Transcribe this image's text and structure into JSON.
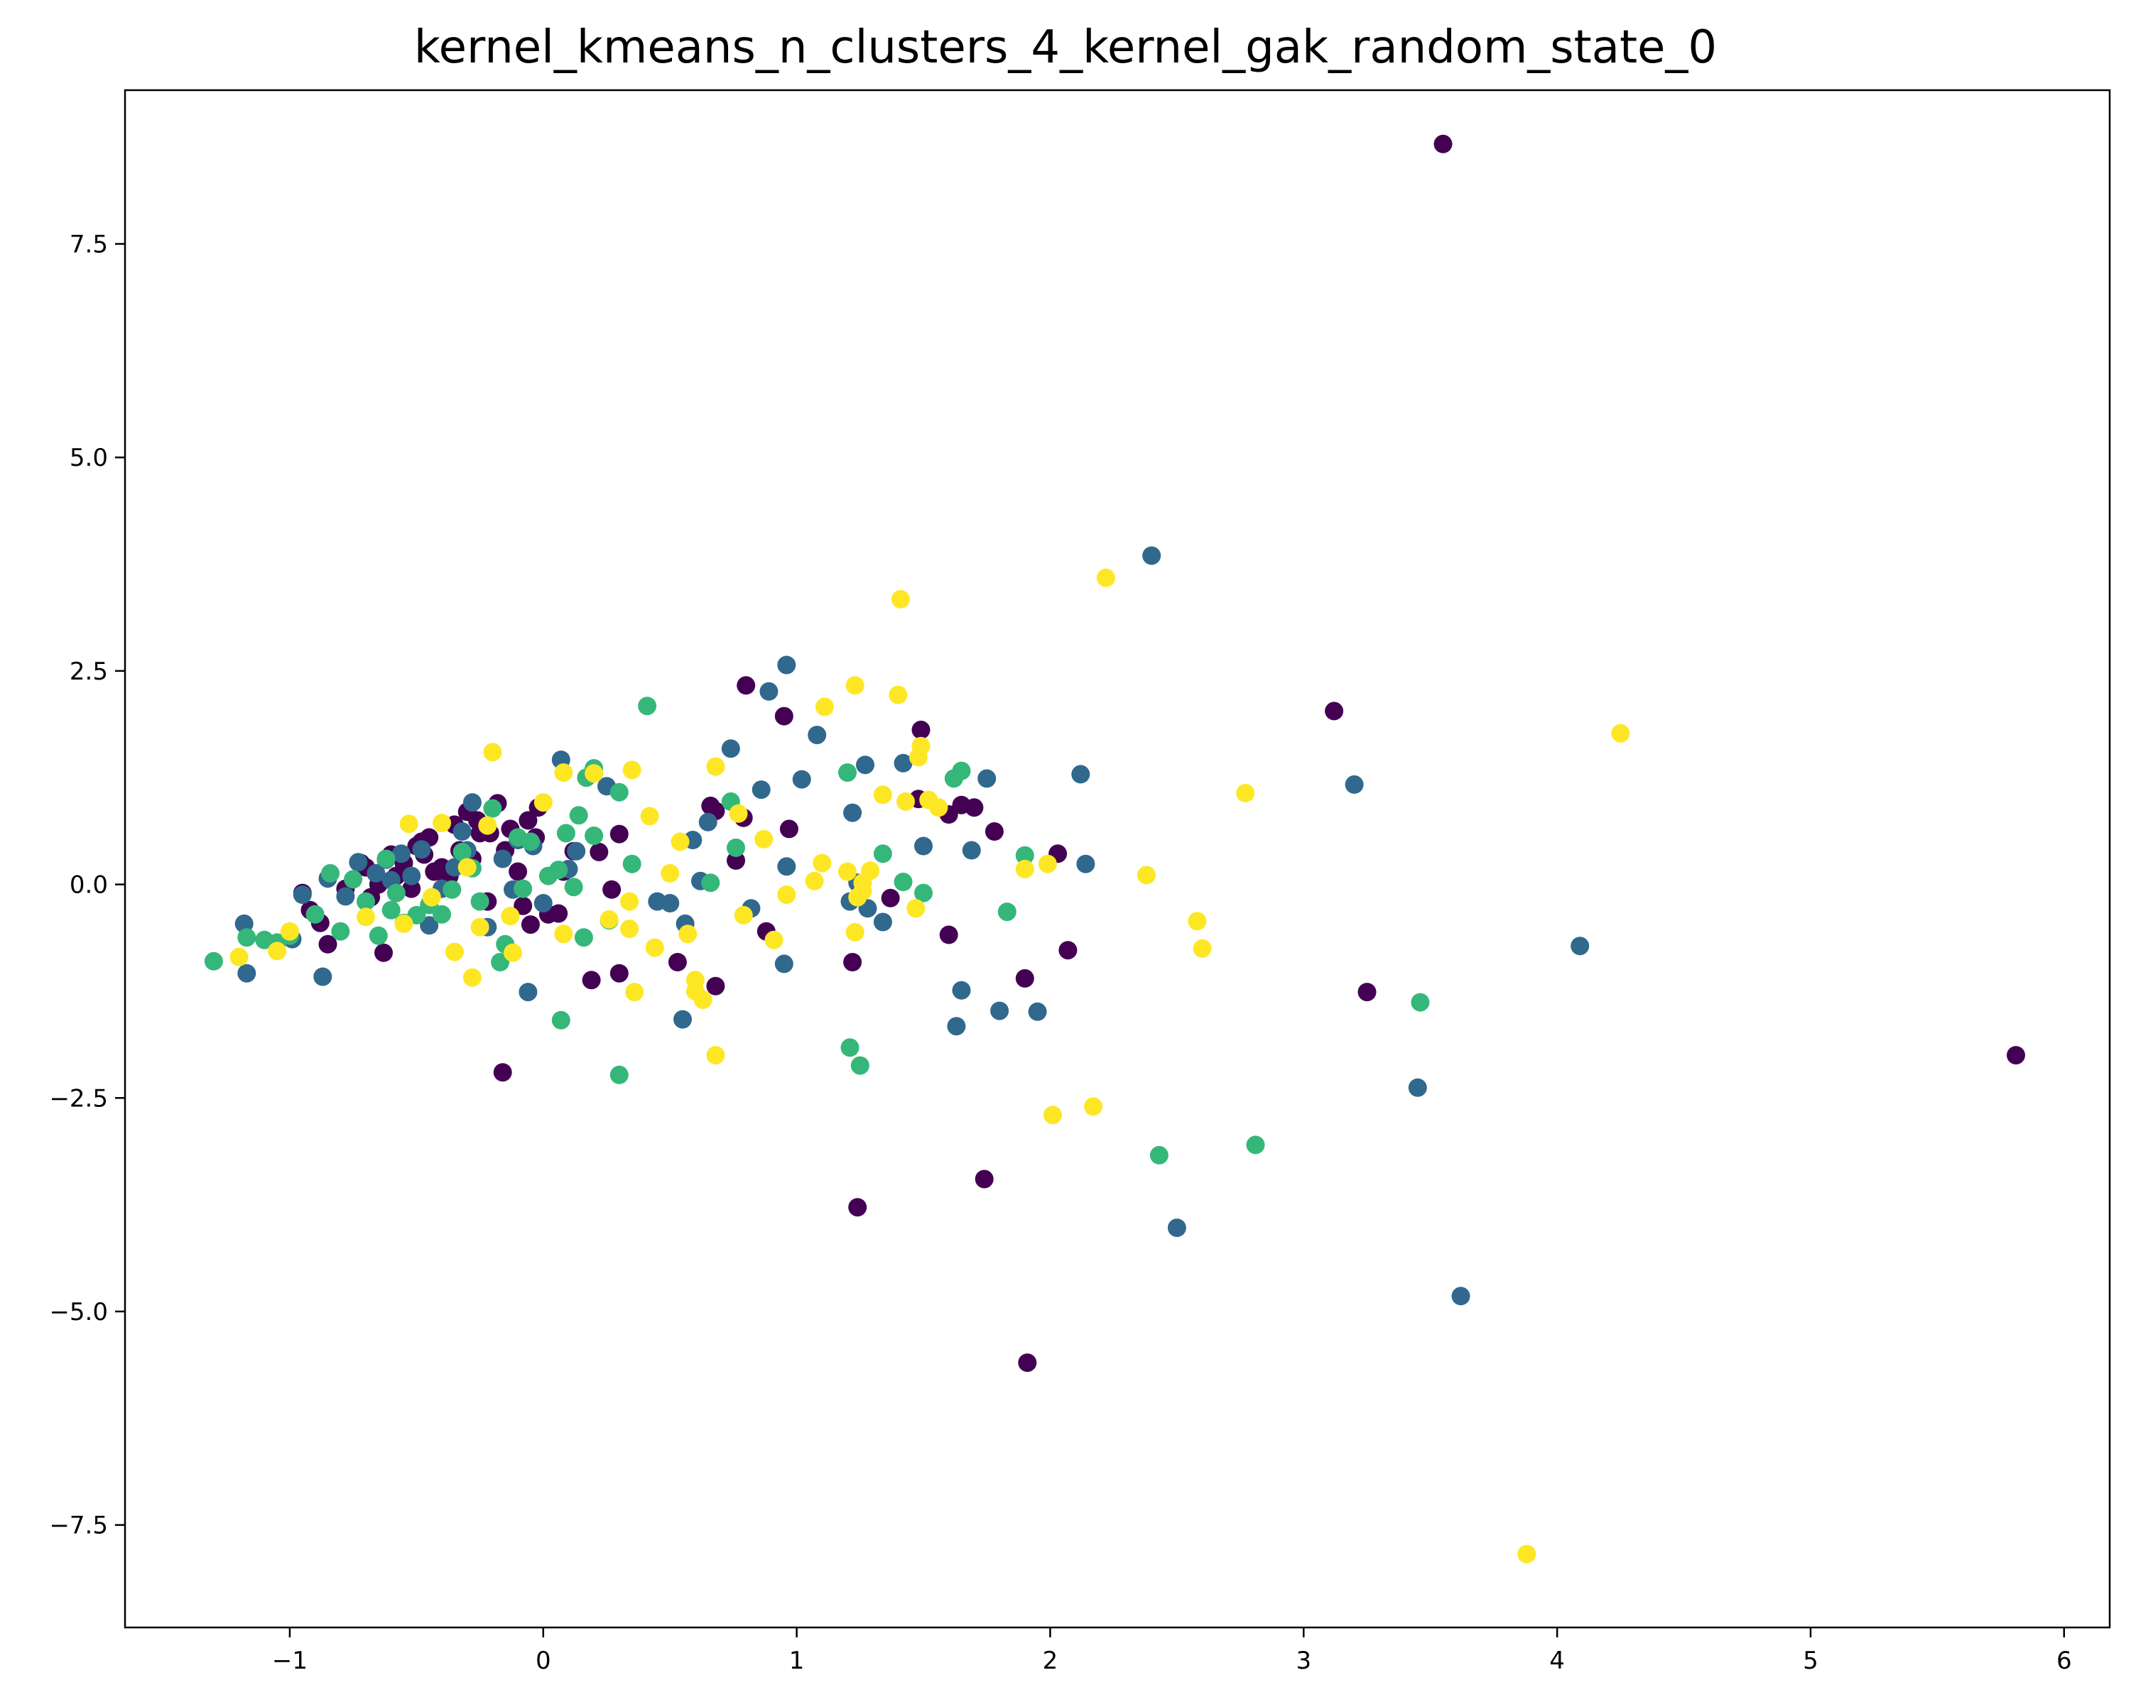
{
  "chart_data": {
    "type": "scatter",
    "title": "kernel_kmeans_n_clusters_4_kernel_gak_random_state_0",
    "xlabel": "",
    "ylabel": "",
    "xlim": [
      -1.65,
      6.18
    ],
    "ylim": [
      -8.7,
      9.3
    ],
    "xticks": [
      -1,
      0,
      1,
      2,
      3,
      4,
      5,
      6
    ],
    "xtick_labels": [
      "−1",
      "0",
      "1",
      "2",
      "3",
      "4",
      "5",
      "6"
    ],
    "yticks": [
      -7.5,
      -5.0,
      -2.5,
      0.0,
      2.5,
      5.0,
      7.5
    ],
    "ytick_labels": [
      "−7.5",
      "−5.0",
      "−2.5",
      "0.0",
      "2.5",
      "5.0",
      "7.5"
    ],
    "grid": false,
    "legend": "none",
    "colormap": "viridis",
    "series": [
      {
        "color": "#440154",
        "x": [
          3.55,
          5.81,
          3.12,
          0.8,
          0.95,
          1.49,
          1.48,
          1.65,
          1.7,
          1.6,
          1.78,
          2.03,
          0.66,
          0.68,
          0.97,
          0.76,
          0.79,
          1.37,
          1.6,
          2.07,
          1.22,
          1.9,
          3.25,
          0.88,
          0.53,
          0.68,
          0.3,
          0.19,
          0.22,
          0.27,
          0.3,
          0.12,
          0.06,
          -0.05,
          -0.16,
          1.24,
          1.74,
          1.91,
          -0.85,
          -0.88,
          -0.95,
          -0.63,
          -0.58,
          -0.55,
          -0.5,
          -0.45,
          -0.4,
          -0.35,
          -0.3,
          -0.28,
          -0.25,
          -0.22,
          -0.18,
          -0.15,
          -0.1,
          -0.06,
          -0.03,
          -0.72,
          -0.68,
          -0.65,
          -0.6,
          -0.52,
          -0.48,
          -0.43,
          -0.38,
          -0.33,
          -0.26,
          -0.21,
          -0.13,
          -0.08,
          -0.02,
          0.02,
          0.08,
          -0.92,
          -0.78,
          -0.7,
          -0.47,
          -0.37
        ],
        "y": [
          8.67,
          -2.0,
          2.03,
          2.33,
          1.97,
          1.81,
          1.0,
          0.93,
          0.9,
          0.82,
          0.62,
          0.36,
          0.92,
          0.86,
          0.65,
          0.28,
          0.78,
          -0.16,
          -0.59,
          -0.77,
          -0.91,
          -1.1,
          -1.26,
          -0.55,
          -0.91,
          -1.19,
          -1.04,
          -1.12,
          0.38,
          -0.06,
          0.59,
          0.39,
          -0.34,
          -0.47,
          -2.2,
          -3.78,
          -3.45,
          -5.6,
          -0.7,
          -0.45,
          -0.1,
          -0.8,
          0.1,
          0.25,
          0.45,
          0.55,
          0.2,
          0.7,
          0.85,
          0.3,
          0.6,
          -0.2,
          0.95,
          0.4,
          0.15,
          0.75,
          0.55,
          0.25,
          -0.15,
          0.0,
          0.35,
          -0.05,
          0.5,
          0.15,
          0.05,
          0.4,
          0.75,
          0.6,
          0.65,
          -0.25,
          0.9,
          -0.35,
          0.15,
          -0.3,
          -0.05,
          0.2,
          0.35,
          0.1
        ]
      },
      {
        "color": "#31688e",
        "x": [
          2.4,
          3.2,
          0.96,
          0.89,
          1.08,
          2.12,
          2.14,
          1.75,
          1.27,
          1.22,
          1.42,
          1.5,
          1.69,
          1.02,
          0.86,
          0.74,
          0.65,
          0.59,
          0.62,
          0.96,
          1.24,
          1.34,
          1.21,
          1.28,
          0.82,
          0.45,
          0.5,
          0.56,
          0.95,
          1.65,
          1.63,
          1.8,
          1.95,
          0.55,
          -0.06,
          4.09,
          3.45,
          3.62,
          2.5,
          -0.87,
          -1.17,
          -1.18,
          0.07,
          0.25,
          0.13,
          0.1,
          -0.1,
          -0.12,
          -0.28,
          -0.32,
          -0.48,
          -0.56,
          -0.62,
          -0.66,
          -0.73,
          -0.78,
          -0.85,
          -0.95,
          -0.99,
          -0.45,
          -0.4,
          -0.35,
          -0.22,
          -0.16,
          -0.04,
          0.0,
          -0.6,
          -0.52,
          -0.3
        ],
        "y": [
          3.85,
          1.17,
          2.57,
          2.26,
          1.75,
          1.29,
          0.24,
          1.24,
          1.4,
          0.84,
          1.42,
          0.45,
          0.4,
          1.23,
          1.11,
          1.59,
          0.73,
          0.52,
          0.04,
          0.21,
          0.02,
          -0.44,
          -0.2,
          -0.28,
          -0.28,
          -0.2,
          -0.22,
          -0.46,
          -0.93,
          -1.24,
          -1.66,
          -1.48,
          -1.49,
          -1.58,
          -1.26,
          -0.72,
          -2.38,
          -4.82,
          -4.02,
          -1.08,
          -1.04,
          -0.46,
          1.46,
          1.15,
          0.39,
          0.18,
          0.52,
          -0.06,
          0.96,
          0.62,
          0.41,
          0.36,
          0.29,
          0.13,
          0.26,
          -0.14,
          0.07,
          -0.12,
          -0.64,
          -0.48,
          -0.05,
          0.2,
          -0.5,
          0.3,
          0.45,
          -0.22,
          0.05,
          0.1,
          0.4
        ]
      },
      {
        "color": "#35b779",
        "x": [
          0.41,
          1.2,
          1.65,
          1.62,
          1.9,
          1.34,
          1.42,
          1.5,
          1.83,
          0.74,
          0.76,
          0.66,
          0.2,
          0.17,
          0.3,
          0.14,
          0.2,
          0.09,
          0.06,
          0.35,
          1.21,
          1.25,
          3.46,
          2.43,
          2.81,
          0.3,
          0.07,
          -0.17,
          -0.2,
          -0.32,
          -0.28,
          -0.36,
          -0.45,
          -0.5,
          -0.55,
          -0.6,
          -0.62,
          -0.65,
          -0.7,
          -0.75,
          -0.8,
          -0.84,
          -0.9,
          -1.0,
          -1.05,
          -1.1,
          -1.17,
          -1.3,
          -0.4,
          -0.25,
          -0.15,
          -0.05,
          0.02,
          0.12,
          0.16,
          0.26,
          -0.1,
          -0.08,
          -0.58
        ],
        "y": [
          2.09,
          1.31,
          1.33,
          1.24,
          0.34,
          0.36,
          0.03,
          -0.1,
          -0.32,
          0.97,
          0.43,
          0.02,
          1.36,
          1.25,
          1.08,
          0.81,
          0.57,
          0.6,
          0.17,
          0.24,
          -1.91,
          -2.12,
          -1.38,
          -3.17,
          -3.05,
          -2.23,
          -1.59,
          -0.91,
          0.89,
          0.38,
          0.19,
          -0.06,
          -0.24,
          -0.36,
          -0.45,
          -0.3,
          0.3,
          -0.6,
          -0.2,
          0.06,
          -0.55,
          0.13,
          -0.35,
          -0.6,
          -0.68,
          -0.65,
          -0.62,
          -0.9,
          -0.35,
          -0.2,
          -0.7,
          0.5,
          0.1,
          -0.03,
          -0.62,
          -0.42,
          0.55,
          -0.05,
          -0.1
        ]
      },
      {
        "color": "#fde725",
        "x": [
          3.88,
          4.25,
          2.22,
          1.41,
          1.4,
          1.23,
          1.11,
          1.49,
          1.48,
          1.52,
          1.56,
          1.34,
          2.77,
          2.38,
          2.58,
          2.6,
          2.01,
          2.17,
          1.9,
          1.99,
          1.43,
          1.47,
          1.29,
          1.26,
          1.23,
          1.07,
          1.1,
          1.2,
          0.96,
          0.91,
          0.87,
          0.79,
          0.77,
          0.68,
          0.68,
          0.57,
          0.6,
          0.6,
          0.42,
          0.44,
          0.35,
          0.34,
          0.36,
          0.5,
          0.26,
          0.08,
          -0.2,
          -0.22,
          -0.13,
          -0.28,
          -0.35,
          -0.4,
          -0.53,
          -0.44,
          -0.12,
          0.0,
          0.2,
          0.34,
          0.54,
          -0.7,
          -0.55,
          -0.25,
          -0.3,
          -1.05,
          -1.2,
          -1.0,
          0.08,
          1.26,
          1.24,
          0.63
        ],
        "y": [
          -7.84,
          1.77,
          3.59,
          3.34,
          2.22,
          2.33,
          2.08,
          1.62,
          1.49,
          0.99,
          0.9,
          1.05,
          1.07,
          0.11,
          -0.43,
          -0.75,
          -2.7,
          -2.6,
          0.18,
          0.24,
          0.97,
          -0.28,
          0.16,
          0.02,
          -0.56,
          0.04,
          0.25,
          0.15,
          -0.12,
          -0.65,
          0.53,
          -0.36,
          0.83,
          1.38,
          -2.0,
          -0.58,
          -1.12,
          -1.25,
          0.8,
          -0.74,
          1.34,
          -0.2,
          -1.26,
          0.13,
          -0.41,
          1.31,
          1.55,
          0.69,
          -0.37,
          -1.09,
          -0.79,
          0.72,
          0.71,
          -0.15,
          -0.8,
          0.96,
          1.3,
          -0.52,
          0.5,
          -0.38,
          -0.46,
          -0.5,
          0.2,
          -0.78,
          -0.85,
          -0.55,
          -0.58,
          -0.08,
          -0.15,
          -1.35
        ]
      }
    ]
  }
}
